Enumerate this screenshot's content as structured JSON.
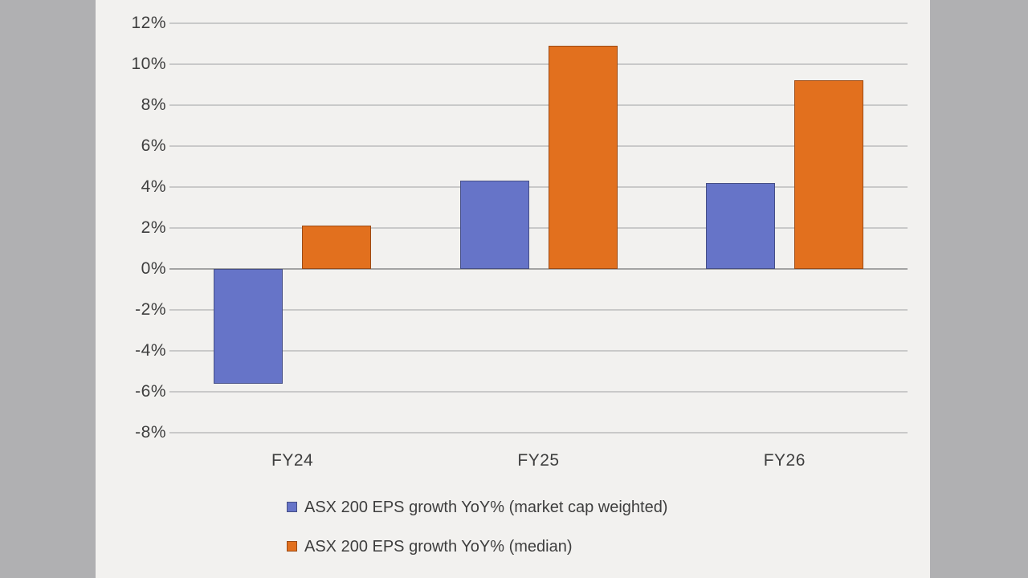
{
  "chart_data": {
    "type": "bar",
    "title": "",
    "categories": [
      "FY24",
      "FY25",
      "FY26"
    ],
    "series": [
      {
        "name": "ASX 200 EPS growth YoY% (market cap weighted)",
        "color": "#6674c8",
        "border_color": "#464f86",
        "values": [
          -5.6,
          4.3,
          4.2
        ]
      },
      {
        "name": "ASX 200 EPS growth YoY% (median)",
        "color": "#e2701e",
        "border_color": "#9c4a14",
        "values": [
          2.1,
          10.9,
          9.2
        ]
      }
    ],
    "ylim": [
      -8,
      12
    ],
    "ytick_step": 2,
    "ytick_suffix": "%",
    "ytick_labels": [
      "12%",
      "10%",
      "8%",
      "6%",
      "4%",
      "2%",
      "0%",
      "-2%",
      "-4%",
      "-6%",
      "-8%"
    ],
    "grid": true,
    "legend_position": "bottom-left"
  },
  "colors": {
    "canvas_bg": "#f2f1ef",
    "letterbox_bg": "#b0b0b2",
    "gridline": "#c9c9c9",
    "zero_line": "#a3a3a3",
    "text": "#3e3e3e"
  }
}
